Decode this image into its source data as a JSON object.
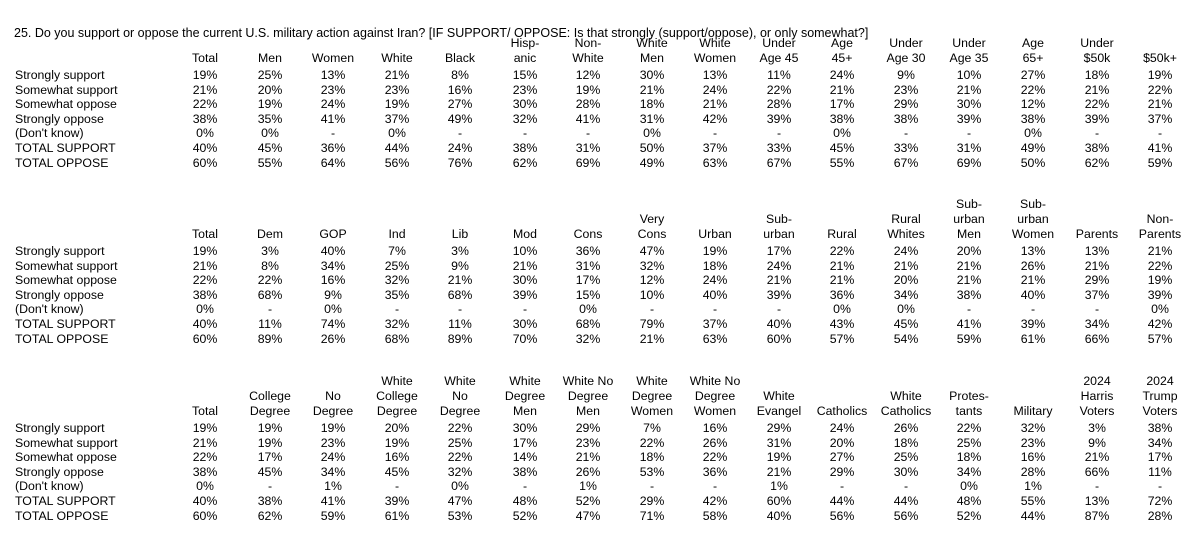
{
  "question": "25. Do you support or oppose the current U.S. military action against Iran?  [IF SUPPORT/ OPPOSE: Is that strongly (support/oppose), or only somewhat?]",
  "row_labels": [
    "Strongly support",
    "Somewhat support",
    "Somewhat oppose",
    "Strongly oppose",
    "(Don't know)",
    "TOTAL SUPPORT",
    "TOTAL OPPOSE"
  ],
  "tables": [
    {
      "columns": [
        "Total",
        "Men",
        "Women",
        "White",
        "Black",
        "Hisp-\nanic",
        "Non-\nWhite",
        "White\nMen",
        "White\nWomen",
        "Under\nAge 45",
        "Age\n45+",
        "Under\nAge 30",
        "Under\nAge 35",
        "Age\n65+",
        "Under\n$50k",
        "$50k+"
      ],
      "rows": [
        [
          "19%",
          "25%",
          "13%",
          "21%",
          "8%",
          "15%",
          "12%",
          "30%",
          "13%",
          "11%",
          "24%",
          "9%",
          "10%",
          "27%",
          "18%",
          "19%"
        ],
        [
          "21%",
          "20%",
          "23%",
          "23%",
          "16%",
          "23%",
          "19%",
          "21%",
          "24%",
          "22%",
          "21%",
          "23%",
          "21%",
          "22%",
          "21%",
          "22%"
        ],
        [
          "22%",
          "19%",
          "24%",
          "19%",
          "27%",
          "30%",
          "28%",
          "18%",
          "21%",
          "28%",
          "17%",
          "29%",
          "30%",
          "12%",
          "22%",
          "21%"
        ],
        [
          "38%",
          "35%",
          "41%",
          "37%",
          "49%",
          "32%",
          "41%",
          "31%",
          "42%",
          "39%",
          "38%",
          "38%",
          "39%",
          "38%",
          "39%",
          "37%"
        ],
        [
          "0%",
          "0%",
          "-",
          "0%",
          "-",
          "-",
          "-",
          "0%",
          "-",
          "-",
          "0%",
          "-",
          "-",
          "0%",
          "-",
          "-"
        ],
        [
          "40%",
          "45%",
          "36%",
          "44%",
          "24%",
          "38%",
          "31%",
          "50%",
          "37%",
          "33%",
          "45%",
          "33%",
          "31%",
          "49%",
          "38%",
          "41%"
        ],
        [
          "60%",
          "55%",
          "64%",
          "56%",
          "76%",
          "62%",
          "69%",
          "49%",
          "63%",
          "67%",
          "55%",
          "67%",
          "69%",
          "50%",
          "62%",
          "59%"
        ]
      ]
    },
    {
      "columns": [
        "Total",
        "Dem",
        "GOP",
        "Ind",
        "Lib",
        "Mod",
        "Cons",
        "Very\nCons",
        "Urban",
        "Sub-\nurban",
        "Rural",
        "Rural\nWhites",
        "Sub-\nurban\nMen",
        "Sub-\nurban\nWomen",
        "Parents",
        "Non-\nParents"
      ],
      "rows": [
        [
          "19%",
          "3%",
          "40%",
          "7%",
          "3%",
          "10%",
          "36%",
          "47%",
          "19%",
          "17%",
          "22%",
          "24%",
          "20%",
          "13%",
          "13%",
          "21%"
        ],
        [
          "21%",
          "8%",
          "34%",
          "25%",
          "9%",
          "21%",
          "31%",
          "32%",
          "18%",
          "24%",
          "21%",
          "21%",
          "21%",
          "26%",
          "21%",
          "22%"
        ],
        [
          "22%",
          "22%",
          "16%",
          "32%",
          "21%",
          "30%",
          "17%",
          "12%",
          "24%",
          "21%",
          "21%",
          "20%",
          "21%",
          "21%",
          "29%",
          "19%"
        ],
        [
          "38%",
          "68%",
          "9%",
          "35%",
          "68%",
          "39%",
          "15%",
          "10%",
          "40%",
          "39%",
          "36%",
          "34%",
          "38%",
          "40%",
          "37%",
          "39%"
        ],
        [
          "0%",
          "-",
          "0%",
          "-",
          "-",
          "-",
          "0%",
          "-",
          "-",
          "-",
          "0%",
          "0%",
          "-",
          "-",
          "-",
          "0%"
        ],
        [
          "40%",
          "11%",
          "74%",
          "32%",
          "11%",
          "30%",
          "68%",
          "79%",
          "37%",
          "40%",
          "43%",
          "45%",
          "41%",
          "39%",
          "34%",
          "42%"
        ],
        [
          "60%",
          "89%",
          "26%",
          "68%",
          "89%",
          "70%",
          "32%",
          "21%",
          "63%",
          "60%",
          "57%",
          "54%",
          "59%",
          "61%",
          "66%",
          "57%"
        ]
      ]
    },
    {
      "columns": [
        "Total",
        "College\nDegree",
        "No\nDegree",
        "White\nCollege\nDegree",
        "White\nNo\nDegree",
        "White\nDegree\nMen",
        "White No\nDegree\nMen",
        "White\nDegree\nWomen",
        "White No\nDegree\nWomen",
        "White\nEvangel",
        "Catholics",
        "White\nCatholics",
        "Protes-\ntants",
        "Military",
        "2024\nHarris\nVoters",
        "2024\nTrump\nVoters"
      ],
      "rows": [
        [
          "19%",
          "19%",
          "19%",
          "20%",
          "22%",
          "30%",
          "29%",
          "7%",
          "16%",
          "29%",
          "24%",
          "26%",
          "22%",
          "32%",
          "3%",
          "38%"
        ],
        [
          "21%",
          "19%",
          "23%",
          "19%",
          "25%",
          "17%",
          "23%",
          "22%",
          "26%",
          "31%",
          "20%",
          "18%",
          "25%",
          "23%",
          "9%",
          "34%"
        ],
        [
          "22%",
          "17%",
          "24%",
          "16%",
          "22%",
          "14%",
          "21%",
          "18%",
          "22%",
          "19%",
          "27%",
          "25%",
          "18%",
          "16%",
          "21%",
          "17%"
        ],
        [
          "38%",
          "45%",
          "34%",
          "45%",
          "32%",
          "38%",
          "26%",
          "53%",
          "36%",
          "21%",
          "29%",
          "30%",
          "34%",
          "28%",
          "66%",
          "11%"
        ],
        [
          "0%",
          "-",
          "1%",
          "-",
          "0%",
          "-",
          "1%",
          "-",
          "-",
          "1%",
          "-",
          "-",
          "0%",
          "1%",
          "-",
          "-"
        ],
        [
          "40%",
          "38%",
          "41%",
          "39%",
          "47%",
          "48%",
          "52%",
          "29%",
          "42%",
          "60%",
          "44%",
          "44%",
          "48%",
          "55%",
          "13%",
          "72%"
        ],
        [
          "60%",
          "62%",
          "59%",
          "61%",
          "53%",
          "52%",
          "47%",
          "71%",
          "58%",
          "40%",
          "56%",
          "56%",
          "52%",
          "44%",
          "87%",
          "28%"
        ]
      ]
    }
  ]
}
